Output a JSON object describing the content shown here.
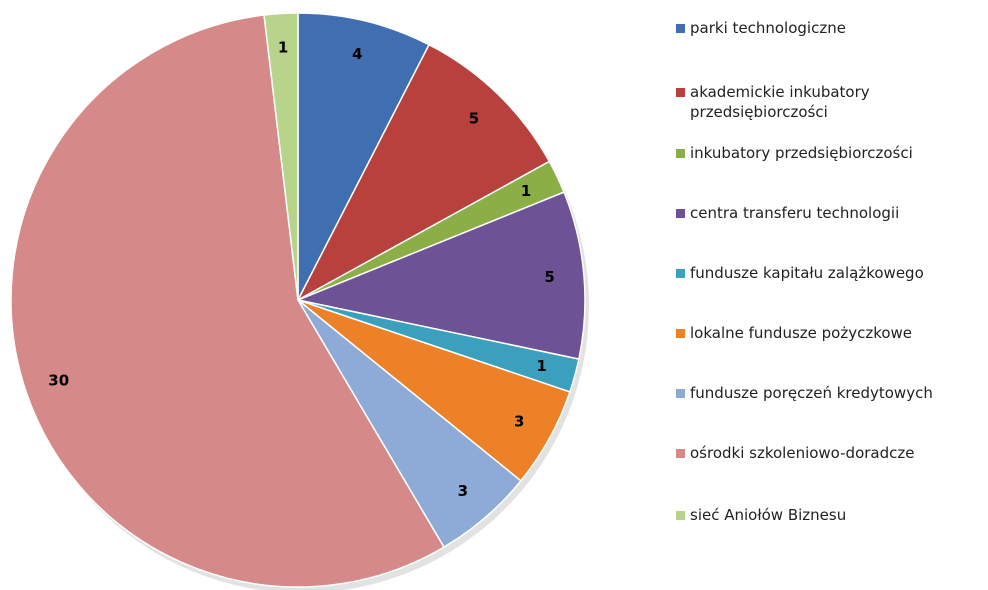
{
  "chart_data": {
    "type": "pie",
    "categories": [
      "parki technologiczne",
      "akademickie inkubatory przedsiębiorczości",
      "inkubatory przedsiębiorczości",
      "centra transferu technologii",
      "fundusze kapitału zalążkowego",
      "lokalne fundusze pożyczkowe",
      "fundusze poręczeń kredytowych",
      "ośrodki szkoleniowo-doradcze",
      "sieć Aniołów Biznesu"
    ],
    "values": [
      4,
      5,
      1,
      5,
      1,
      3,
      3,
      30,
      1
    ],
    "colors": [
      "#3f6fb0",
      "#b8403d",
      "#8cae47",
      "#6e5296",
      "#3aa0bd",
      "#ec8128",
      "#8eaad6",
      "#d58a89",
      "#b8d38a"
    ],
    "legend": "right"
  }
}
